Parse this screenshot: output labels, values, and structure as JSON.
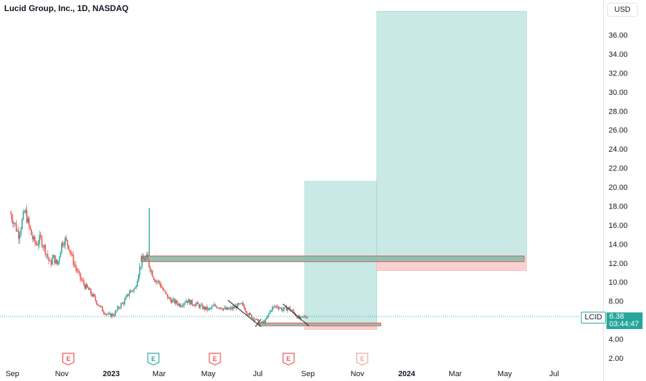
{
  "header": {
    "title": "Lucid Group, Inc., 1D, NASDAQ",
    "currency": "USD"
  },
  "last_price": {
    "ticker": "LCID",
    "price": "6.38",
    "countdown": "03:44:47"
  },
  "colors": {
    "up": "#26a69a",
    "down": "#ef5350",
    "target_zone": "#b2dfdb",
    "stop_zone": "#f8c9c9",
    "price_line": "#26a69a"
  },
  "chart_data": {
    "type": "candlestick",
    "title": "Lucid Group, Inc., 1D, NASDAQ",
    "y_ticks": [
      "2.00",
      "4.00",
      "6.00",
      "8.00",
      "10.00",
      "12.00",
      "14.00",
      "16.00",
      "18.00",
      "20.00",
      "22.00",
      "24.00",
      "26.00",
      "28.00",
      "30.00",
      "32.00",
      "34.00",
      "36.00"
    ],
    "x_ticks": [
      "Sep",
      "Nov",
      "2023",
      "Mar",
      "May",
      "Jul",
      "Sep",
      "Nov",
      "2024",
      "Mar",
      "May",
      "Jul"
    ],
    "ylim": [
      1.0,
      38.5
    ],
    "grid": false,
    "earnings_markers": [
      {
        "date": "2022-11-09",
        "label": "E"
      },
      {
        "date": "2023-02-22",
        "label": "E"
      },
      {
        "date": "2023-05-09",
        "label": "E"
      },
      {
        "date": "2023-08-08",
        "label": "E"
      },
      {
        "date": "2023-11-07",
        "label": "E"
      }
    ],
    "close_path": [
      [
        "2022-08-29",
        17.2
      ],
      [
        "2022-09-02",
        16.4
      ],
      [
        "2022-09-08",
        15.0
      ],
      [
        "2022-09-13",
        16.6
      ],
      [
        "2022-09-16",
        17.5
      ],
      [
        "2022-09-21",
        15.8
      ],
      [
        "2022-09-26",
        14.4
      ],
      [
        "2022-09-30",
        14.0
      ],
      [
        "2022-10-05",
        14.6
      ],
      [
        "2022-10-11",
        13.4
      ],
      [
        "2022-10-17",
        11.9
      ],
      [
        "2022-10-21",
        12.6
      ],
      [
        "2022-10-26",
        11.8
      ],
      [
        "2022-10-31",
        14.0
      ],
      [
        "2022-11-04",
        14.5
      ],
      [
        "2022-11-09",
        13.8
      ],
      [
        "2022-11-14",
        12.3
      ],
      [
        "2022-11-18",
        11.4
      ],
      [
        "2022-11-23",
        10.4
      ],
      [
        "2022-11-29",
        9.6
      ],
      [
        "2022-12-05",
        9.0
      ],
      [
        "2022-12-09",
        8.5
      ],
      [
        "2022-12-15",
        7.7
      ],
      [
        "2022-12-21",
        7.0
      ],
      [
        "2022-12-28",
        6.5
      ],
      [
        "2023-01-04",
        6.6
      ],
      [
        "2023-01-10",
        7.4
      ],
      [
        "2023-01-17",
        8.0
      ],
      [
        "2023-01-23",
        9.0
      ],
      [
        "2023-01-30",
        9.3
      ],
      [
        "2023-02-03",
        11.0
      ],
      [
        "2023-02-07",
        12.2
      ],
      [
        "2023-02-13",
        12.6
      ],
      [
        "2023-02-17",
        11.6
      ],
      [
        "2023-02-23",
        10.3
      ],
      [
        "2023-03-01",
        9.9
      ],
      [
        "2023-03-07",
        8.9
      ],
      [
        "2023-03-13",
        8.2
      ],
      [
        "2023-03-20",
        7.9
      ],
      [
        "2023-03-27",
        7.6
      ],
      [
        "2023-04-03",
        8.1
      ],
      [
        "2023-04-10",
        7.8
      ],
      [
        "2023-04-17",
        7.6
      ],
      [
        "2023-04-24",
        7.3
      ],
      [
        "2023-05-01",
        7.1
      ],
      [
        "2023-05-08",
        7.5
      ],
      [
        "2023-05-15",
        7.4
      ],
      [
        "2023-05-22",
        7.1
      ],
      [
        "2023-05-29",
        7.2
      ],
      [
        "2023-06-05",
        7.5
      ],
      [
        "2023-06-12",
        7.6
      ],
      [
        "2023-06-19",
        6.6
      ],
      [
        "2023-06-26",
        6.2
      ],
      [
        "2023-07-03",
        5.6
      ],
      [
        "2023-07-10",
        5.9
      ],
      [
        "2023-07-17",
        7.2
      ],
      [
        "2023-07-24",
        7.5
      ],
      [
        "2023-07-31",
        7.1
      ],
      [
        "2023-08-07",
        7.3
      ],
      [
        "2023-08-14",
        6.8
      ],
      [
        "2023-08-21",
        6.1
      ],
      [
        "2023-08-28",
        6.4
      ],
      [
        "2023-09-01",
        6.38
      ]
    ],
    "spike": {
      "date": "2023-02-17",
      "high": 17.8
    },
    "last_price": 6.38,
    "position_tools": [
      {
        "entry": 5.7,
        "target": 20.6,
        "stop": 5.0,
        "start": "2023-08-28",
        "end": "2023-11-25"
      },
      {
        "entry": 12.55,
        "target": 38.5,
        "stop": 11.2,
        "start": "2023-11-25",
        "end": "2024-05-28"
      }
    ],
    "zones": [
      {
        "from": "2023-02-07",
        "to": "2024-05-25",
        "low": 12.15,
        "high": 12.75
      },
      {
        "from": "2023-07-03",
        "to": "2023-11-30",
        "low": 5.4,
        "high": 5.7
      }
    ],
    "trendlines": [
      {
        "from": [
          "2023-05-25",
          8.1
        ],
        "to": [
          "2023-07-05",
          5.3
        ]
      },
      {
        "from": [
          "2023-06-28",
          5.3
        ],
        "to": [
          "2023-07-05",
          6.1
        ]
      },
      {
        "from": [
          "2023-08-01",
          7.7
        ],
        "to": [
          "2023-09-02",
          5.4
        ]
      }
    ]
  }
}
